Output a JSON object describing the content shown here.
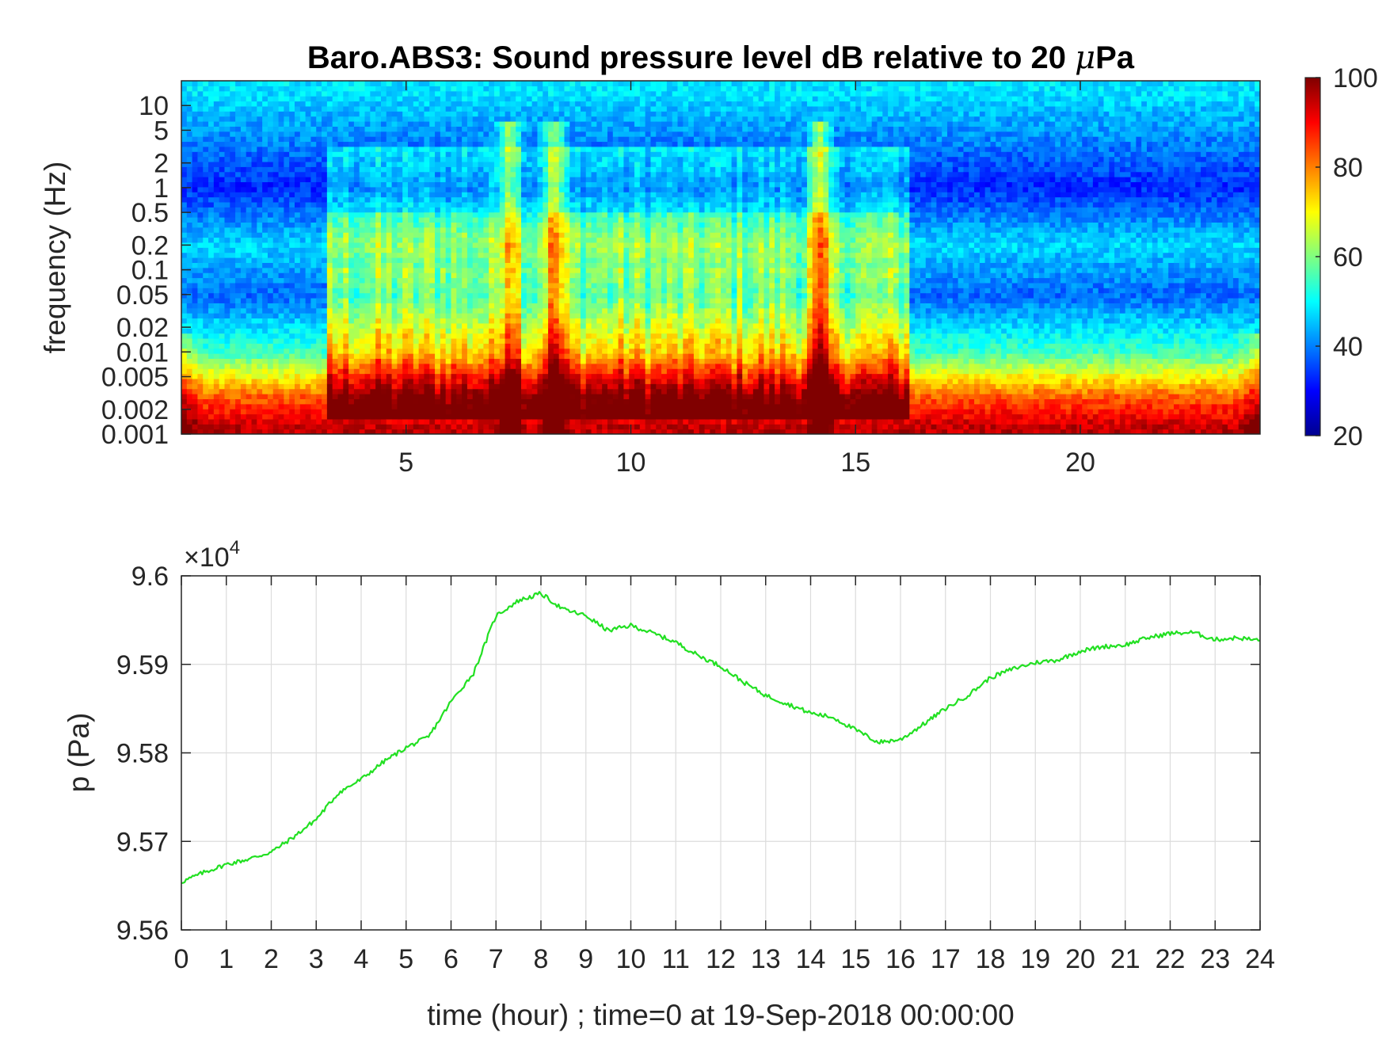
{
  "chart_data": [
    {
      "type": "heatmap",
      "title": "Baro.ABS3: Sound pressure level dB relative to 20 μPa",
      "title_parts": {
        "before": "Baro.ABS3: Sound pressure level dB relative to 20 ",
        "mu": "μ",
        "after": "Pa"
      },
      "xlabel": "",
      "ylabel": "frequency (Hz)",
      "xlim": [
        0,
        24
      ],
      "ylim": [
        0.001,
        20
      ],
      "yscale": "log",
      "x_ticks": [
        "5",
        "10",
        "15",
        "20"
      ],
      "x_tick_values": [
        5,
        10,
        15,
        20
      ],
      "y_ticks": [
        "10",
        "5",
        "2",
        "1",
        "0.5",
        "0.2",
        "0.1",
        "0.05",
        "0.02",
        "0.01",
        "0.005",
        "0.002",
        "0.001"
      ],
      "y_tick_values": [
        10,
        5,
        2,
        1,
        0.5,
        0.2,
        0.1,
        0.05,
        0.02,
        0.01,
        0.005,
        0.002,
        0.001
      ],
      "colormap": "jet",
      "colorbar": {
        "range": [
          20,
          100
        ],
        "ticks": [
          "100",
          "80",
          "60",
          "40",
          "20"
        ],
        "tick_values": [
          100,
          80,
          60,
          40,
          20
        ]
      },
      "level_profile": {
        "description_free_quiet_hours": [
          [
            0,
            3.2
          ],
          [
            16.2,
            24
          ]
        ],
        "peak_events_hours": [
          7.3,
          8.3,
          14.2
        ],
        "band_levels_db": [
          {
            "f_hz": 15,
            "db": 48
          },
          {
            "f_hz": 1,
            "db": 33
          },
          {
            "f_hz": 0.2,
            "db": 47
          },
          {
            "f_hz": 0.05,
            "db": 38
          },
          {
            "f_hz": 0.01,
            "db": 55
          },
          {
            "f_hz": 0.003,
            "db": 82
          },
          {
            "f_hz": 0.0012,
            "db": 95
          }
        ]
      },
      "grid": false
    },
    {
      "type": "line",
      "title": "",
      "xlabel": "time (hour) ; time=0 at 19-Sep-2018 00:00:00",
      "ylabel": "p (Pa)",
      "y_exponent_label": {
        "prefix": "×10",
        "exponent": "4"
      },
      "xlim": [
        0,
        24
      ],
      "ylim": [
        95600,
        96000
      ],
      "x_ticks": [
        "0",
        "1",
        "2",
        "3",
        "4",
        "5",
        "6",
        "7",
        "8",
        "9",
        "10",
        "11",
        "12",
        "13",
        "14",
        "15",
        "16",
        "17",
        "18",
        "19",
        "20",
        "21",
        "22",
        "23",
        "24"
      ],
      "y_ticks": [
        "9.6",
        "9.59",
        "9.58",
        "9.57",
        "9.56"
      ],
      "y_tick_values": [
        96000,
        95900,
        95800,
        95700,
        95600
      ],
      "grid": true,
      "line_color": "#22e022",
      "series": [
        {
          "x": [
            0,
            0.5,
            1,
            1.5,
            2,
            2.5,
            3,
            3.5,
            4,
            4.5,
            5,
            5.5,
            6,
            6.5,
            7,
            7.5,
            8,
            8.5,
            9,
            9.5,
            10,
            10.5,
            11,
            11.5,
            12,
            12.5,
            13,
            13.5,
            14,
            14.5,
            15,
            15.5,
            16,
            16.5,
            17,
            17.5,
            18,
            18.5,
            19,
            19.5,
            20,
            20.5,
            21,
            21.5,
            22,
            22.5,
            23,
            23.5,
            24
          ],
          "y": [
            95654,
            95665,
            95674,
            95680,
            95688,
            95705,
            95725,
            95755,
            95770,
            95790,
            95806,
            95818,
            95858,
            95890,
            95955,
            95972,
            95980,
            95962,
            95955,
            95938,
            95944,
            95935,
            95925,
            95910,
            95898,
            95880,
            95865,
            95855,
            95845,
            95840,
            95826,
            95812,
            95815,
            95832,
            95850,
            95865,
            95885,
            95895,
            95902,
            95905,
            95915,
            95920,
            95922,
            95930,
            95935,
            95936,
            95928,
            95930,
            95927
          ]
        }
      ]
    }
  ]
}
